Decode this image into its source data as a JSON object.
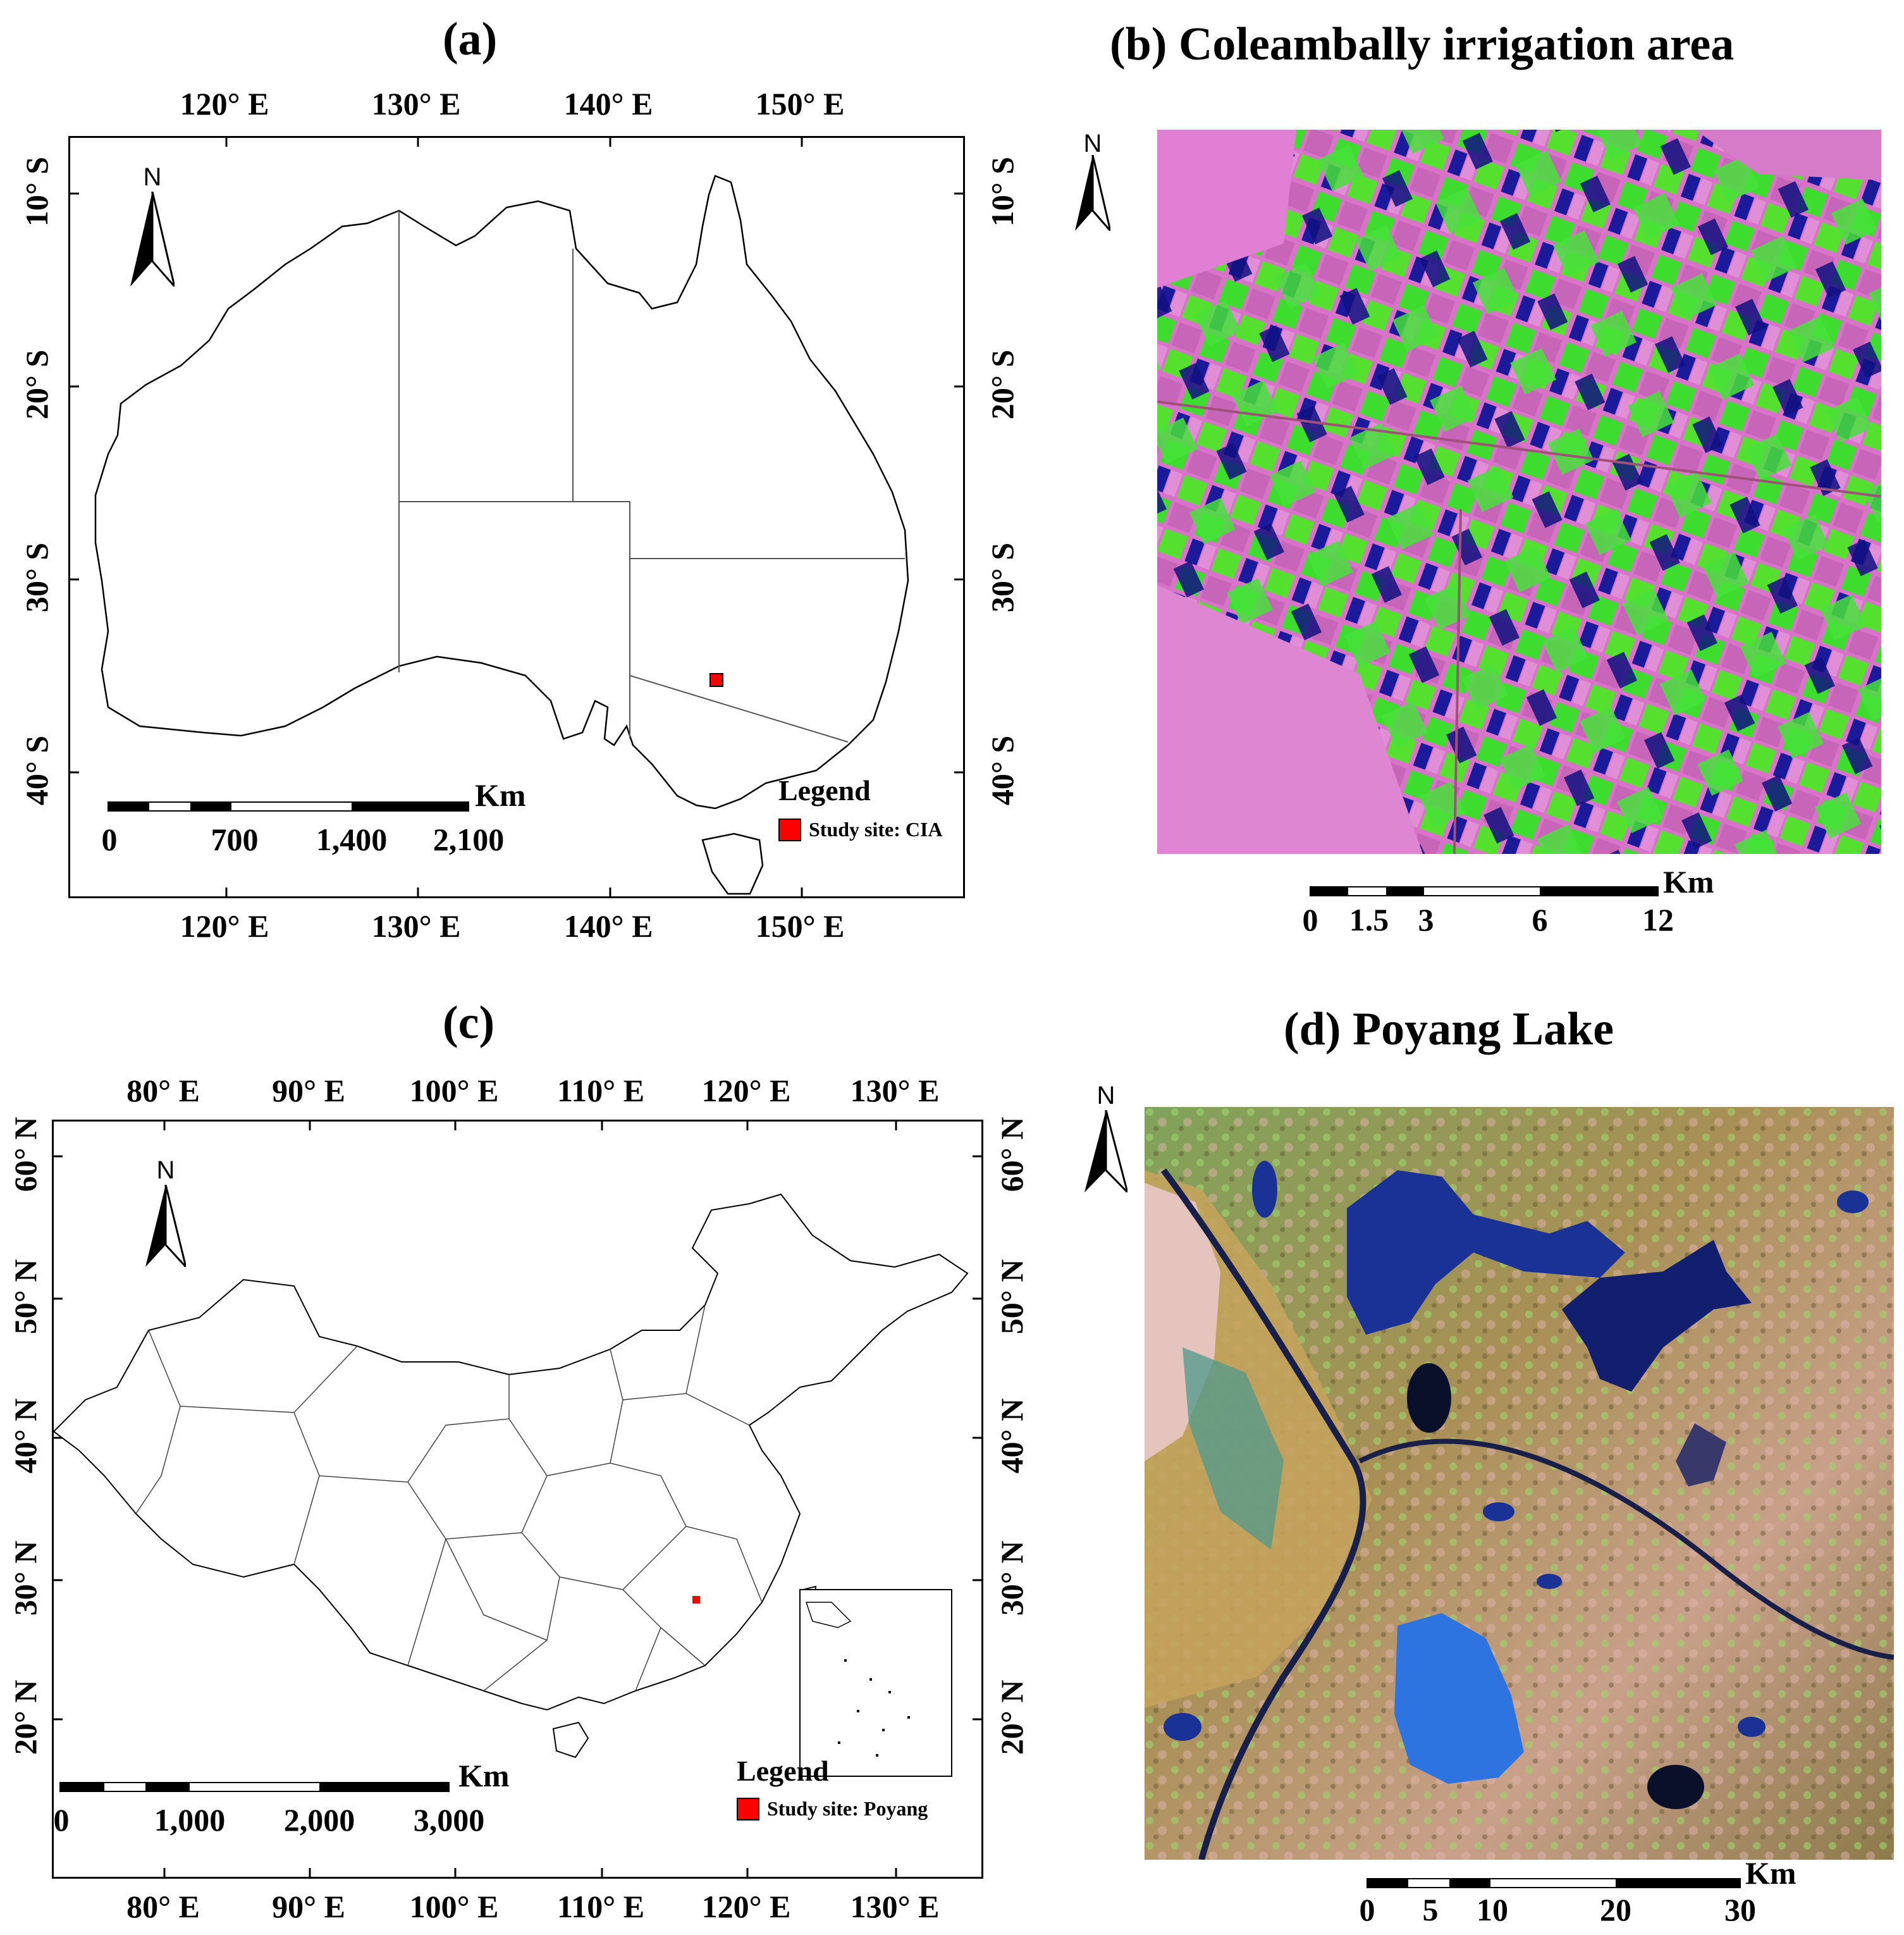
{
  "panels": {
    "a": {
      "title": "(a)",
      "lon_ticks": [
        "120° E",
        "130° E",
        "140° E",
        "150° E"
      ],
      "lat_ticks": [
        "10° S",
        "20° S",
        "30° S",
        "40° S"
      ],
      "north_label": "N",
      "scale_unit": "Km",
      "scale_labels": [
        "0",
        "700",
        "1,400",
        "2,100"
      ],
      "legend_title": "Legend",
      "legend_item": "Study site: CIA",
      "study_site_color": "#ff0000"
    },
    "b": {
      "title": "(b) Coleambally irrigation area",
      "north_label": "N",
      "scale_unit": "Km",
      "scale_labels": [
        "0",
        "1.5",
        "3",
        "6",
        "12"
      ]
    },
    "c": {
      "title": "(c)",
      "lon_ticks": [
        "80° E",
        "90° E",
        "100° E",
        "110° E",
        "120° E",
        "130° E"
      ],
      "lat_ticks": [
        "60° N",
        "50° N",
        "40° N",
        "30° N",
        "20° N"
      ],
      "north_label": "N",
      "scale_unit": "Km",
      "scale_labels": [
        "0",
        "1,000",
        "2,000",
        "3,000"
      ],
      "legend_title": "Legend",
      "legend_item": "Study site: Poyang",
      "study_site_color": "#ff0000"
    },
    "d": {
      "title": "(d) Poyang Lake",
      "north_label": "N",
      "scale_unit": "Km",
      "scale_labels": [
        "0",
        "5",
        "10",
        "20",
        "30"
      ]
    }
  }
}
